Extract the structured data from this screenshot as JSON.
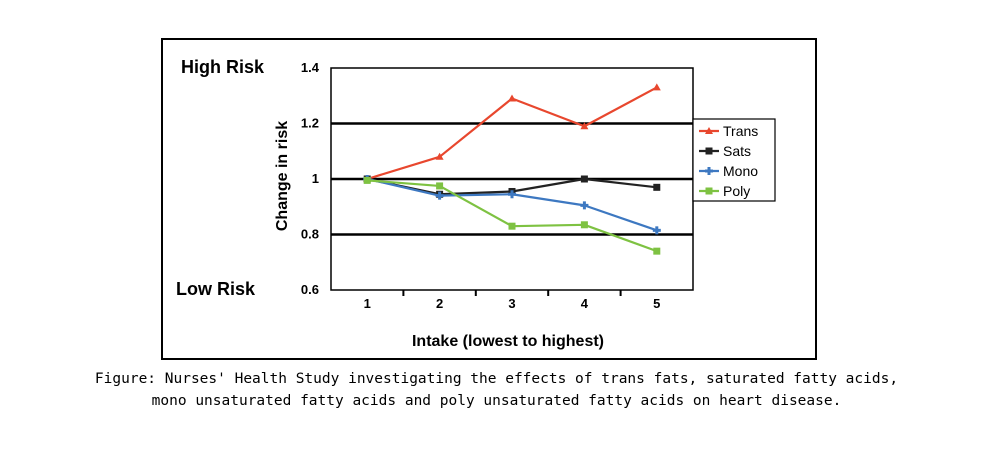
{
  "chart_data": {
    "type": "line",
    "categories": [
      "1",
      "2",
      "3",
      "4",
      "5"
    ],
    "series": [
      {
        "name": "Trans",
        "color": "#e8472e",
        "marker": "triangle",
        "values": [
          1.0,
          1.08,
          1.29,
          1.19,
          1.33
        ]
      },
      {
        "name": "Sats",
        "color": "#222222",
        "marker": "square",
        "values": [
          1.0,
          0.945,
          0.955,
          1.0,
          0.97
        ]
      },
      {
        "name": "Mono",
        "color": "#3d78c1",
        "marker": "cross",
        "values": [
          1.0,
          0.94,
          0.945,
          0.905,
          0.815
        ]
      },
      {
        "name": "Poly",
        "color": "#7ec242",
        "marker": "square",
        "values": [
          0.995,
          0.975,
          0.83,
          0.835,
          0.74
        ]
      }
    ],
    "xlabel": "Intake (lowest to highest)",
    "ylabel": "Change in risk",
    "ylim": [
      0.6,
      1.4
    ],
    "yticks": [
      "0.6",
      "0.8",
      "1",
      "1.2",
      "1.4"
    ],
    "grid": true,
    "legend": "right",
    "annotations": {
      "top": "High Risk",
      "bottom": "Low Risk"
    }
  },
  "caption": {
    "line1": "Figure: Nurses' Health Study investigating the effects of trans fats, saturated fatty acids,",
    "line2": "mono unsaturated fatty acids and poly unsaturated fatty acids on heart disease."
  }
}
